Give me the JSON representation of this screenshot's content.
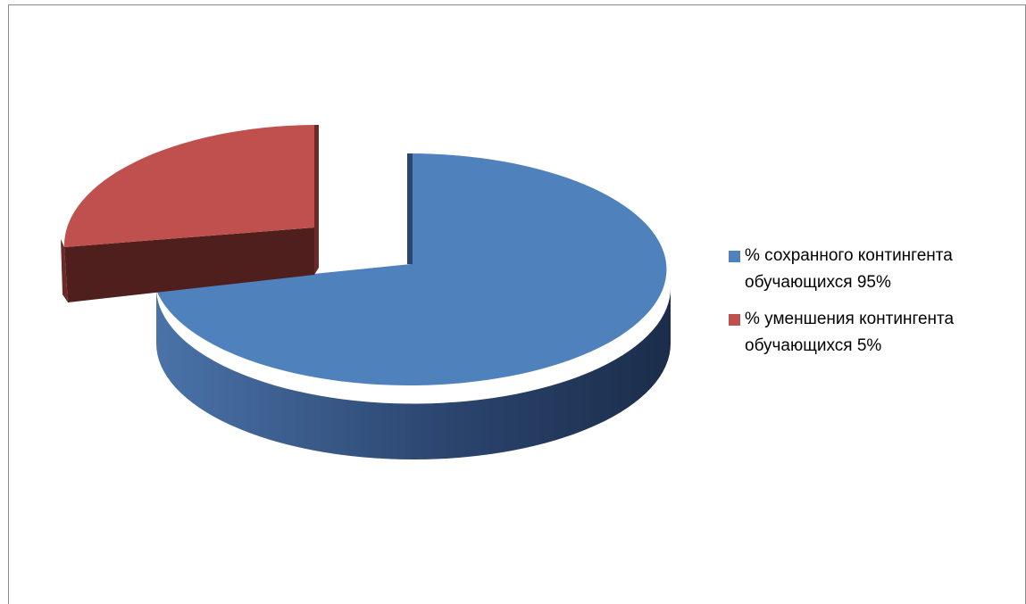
{
  "chart_data": {
    "type": "pie",
    "categories": [
      "% сохранного контингента обучающихся 95%",
      "% уменшения контингента обучающихся 5%"
    ],
    "values": [
      95,
      5
    ],
    "colors": [
      "#4f81bd",
      "#c0504d"
    ],
    "legend_position": "right",
    "title": ""
  }
}
